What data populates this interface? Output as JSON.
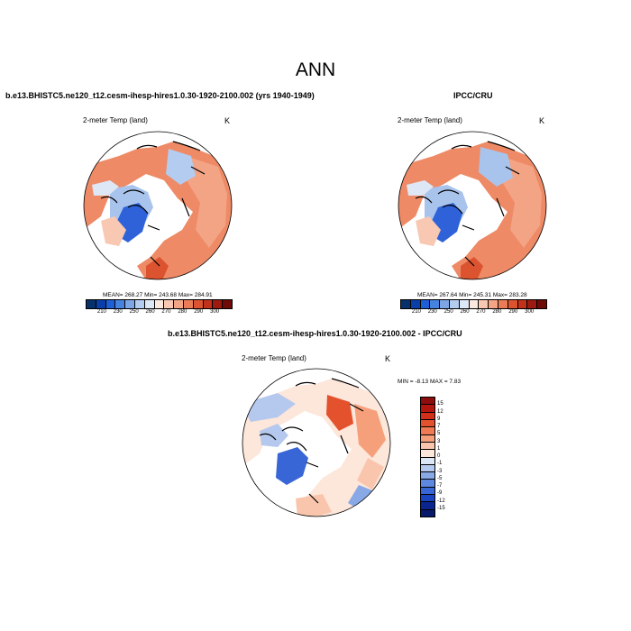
{
  "title": "ANN",
  "panels": [
    {
      "run": "b.e13.BHISTC5.ne120_t12.cesm-ihesp-hires1.0.30-1920-2100.002 (yrs 1940-1949)",
      "variable": "2-meter Temp (land)",
      "units": "K",
      "stats": "MEAN= 268.27   Min= 243.68   Max= 284.91"
    },
    {
      "run": "IPCC/CRU",
      "variable": "2-meter Temp (land)",
      "units": "K",
      "stats": "MEAN= 267.64   Min= 245.31   Max= 283.28"
    },
    {
      "run": "b.e13.BHISTC5.ne120_t12.cesm-ihesp-hires1.0.30-1920-2100.002 - IPCC/CRU",
      "variable": "2-meter Temp (land)",
      "units": "K",
      "stats": "MIN =  -8.13 MAX =   7.83"
    }
  ],
  "colorbar_abs": {
    "ticks": [
      "210",
      "230",
      "250",
      "260",
      "270",
      "280",
      "290",
      "300"
    ],
    "colors": [
      "#08306b",
      "#0a3fa8",
      "#1f5fd6",
      "#4682e0",
      "#7ea6e6",
      "#b4ccef",
      "#dde7f6",
      "#fbe8df",
      "#f8c8b2",
      "#f3a485",
      "#ea7b57",
      "#dc5330",
      "#c2321a",
      "#9c1a0f",
      "#6e0a07"
    ]
  },
  "colorbar_diff": {
    "labels": [
      "15",
      "12",
      "9",
      "7",
      "5",
      "3",
      "1",
      "0",
      "-1",
      "-3",
      "-5",
      "-7",
      "-9",
      "-12",
      "-15"
    ],
    "colors": [
      "#8e0d0d",
      "#b3150f",
      "#d12f1a",
      "#e4512d",
      "#ef7a53",
      "#f5a07b",
      "#f9c6ad",
      "#fde6da",
      "#dde6f5",
      "#b5c9ee",
      "#89a9e6",
      "#5e88df",
      "#3866d6",
      "#1b44c0",
      "#0b2590",
      "#08186b"
    ]
  },
  "map_colors": {
    "ocean": "#ffffff",
    "coast": "#000000",
    "warm_land": "#ee8a66",
    "cool_land": "#a9c4ec",
    "cold_land": "#2f62d8"
  }
}
